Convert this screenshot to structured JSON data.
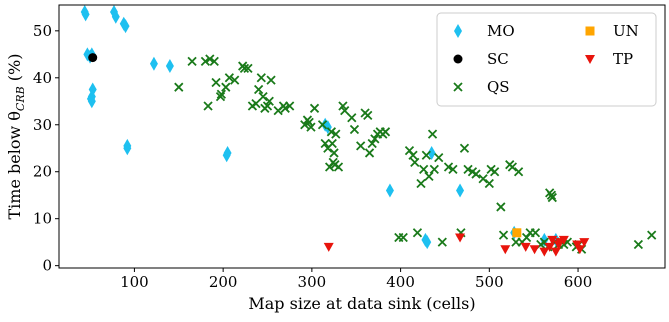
{
  "chart_data": {
    "type": "scatter",
    "xlabel": "Map size at data sink (cells)",
    "ylabel": "Time below θ_CRB (%)",
    "ylabel_parts": {
      "prefix": "Time below θ",
      "subscript": "CRB",
      "suffix": " (%)"
    },
    "xlim": [
      15,
      698
    ],
    "ylim": [
      -0.5,
      55.5
    ],
    "x_ticks": [
      100,
      200,
      300,
      400,
      500,
      600
    ],
    "y_ticks": [
      0,
      10,
      20,
      30,
      40,
      50
    ],
    "grid": false,
    "legend_position": "top-right",
    "legend_columns": 2,
    "series": [
      {
        "name": "MO",
        "marker": "diamond",
        "color": "#1ec0f0",
        "points": [
          [
            44,
            54
          ],
          [
            45,
            53.5
          ],
          [
            47,
            45
          ],
          [
            50,
            44.5
          ],
          [
            52,
            45
          ],
          [
            53,
            37.5
          ],
          [
            52,
            36
          ],
          [
            51,
            35.5
          ],
          [
            52,
            35
          ],
          [
            77,
            54
          ],
          [
            79,
            53
          ],
          [
            88,
            51.5
          ],
          [
            90,
            51
          ],
          [
            92,
            25.5
          ],
          [
            92,
            25
          ],
          [
            122,
            43
          ],
          [
            140,
            42.5
          ],
          [
            205,
            24
          ],
          [
            204,
            23.5
          ],
          [
            315,
            30
          ],
          [
            318,
            29.5
          ],
          [
            388,
            16
          ],
          [
            428,
            5.5
          ],
          [
            430,
            5
          ],
          [
            435,
            24
          ],
          [
            467,
            16
          ],
          [
            528,
            7
          ],
          [
            562,
            5.5
          ],
          [
            575,
            5.5
          ]
        ]
      },
      {
        "name": "SC",
        "marker": "circle",
        "color": "#000000",
        "points": [
          [
            53,
            44.3
          ]
        ]
      },
      {
        "name": "QS",
        "marker": "x",
        "color": "#1a7a1a",
        "points": [
          [
            150,
            38
          ],
          [
            165,
            43.5
          ],
          [
            180,
            43.5
          ],
          [
            185,
            44
          ],
          [
            183,
            34
          ],
          [
            190,
            43.5
          ],
          [
            192,
            39
          ],
          [
            197,
            36
          ],
          [
            198,
            36.5
          ],
          [
            203,
            38
          ],
          [
            207,
            40
          ],
          [
            213,
            39.5
          ],
          [
            222,
            42.5
          ],
          [
            224,
            42
          ],
          [
            228,
            42
          ],
          [
            233,
            34
          ],
          [
            237,
            34.5
          ],
          [
            240,
            37.5
          ],
          [
            243,
            40
          ],
          [
            245,
            36
          ],
          [
            247,
            33.5
          ],
          [
            250,
            34
          ],
          [
            252,
            35
          ],
          [
            254,
            39.5
          ],
          [
            262,
            33
          ],
          [
            268,
            34
          ],
          [
            270,
            33.5
          ],
          [
            275,
            34
          ],
          [
            292,
            30
          ],
          [
            295,
            31
          ],
          [
            297,
            30.5
          ],
          [
            299,
            29.5
          ],
          [
            303,
            33.5
          ],
          [
            312,
            30
          ],
          [
            315,
            26
          ],
          [
            318,
            25
          ],
          [
            322,
            28.5
          ],
          [
            323,
            26
          ],
          [
            325,
            24
          ],
          [
            327,
            28
          ],
          [
            320,
            21
          ],
          [
            324,
            22
          ],
          [
            326,
            21.5
          ],
          [
            330,
            21
          ],
          [
            335,
            34
          ],
          [
            337,
            33
          ],
          [
            345,
            31.5
          ],
          [
            348,
            29
          ],
          [
            355,
            25.5
          ],
          [
            360,
            32.5
          ],
          [
            363,
            32
          ],
          [
            365,
            24
          ],
          [
            368,
            26
          ],
          [
            371,
            27
          ],
          [
            374,
            28
          ],
          [
            377,
            28.5
          ],
          [
            380,
            28
          ],
          [
            383,
            28.5
          ],
          [
            398,
            6
          ],
          [
            403,
            6
          ],
          [
            410,
            24.5
          ],
          [
            414,
            23.5
          ],
          [
            416,
            22
          ],
          [
            419,
            7
          ],
          [
            423,
            17.5
          ],
          [
            426,
            20.5
          ],
          [
            429,
            23.5
          ],
          [
            432,
            19
          ],
          [
            436,
            28
          ],
          [
            438,
            20.5
          ],
          [
            443,
            23
          ],
          [
            447,
            5
          ],
          [
            454,
            21
          ],
          [
            459,
            20.5
          ],
          [
            468,
            7
          ],
          [
            472,
            25
          ],
          [
            476,
            20.5
          ],
          [
            481,
            20
          ],
          [
            485,
            19.5
          ],
          [
            493,
            18.5
          ],
          [
            500,
            17.5
          ],
          [
            502,
            20.5
          ],
          [
            506,
            20
          ],
          [
            513,
            12.5
          ],
          [
            516,
            6.5
          ],
          [
            523,
            21.5
          ],
          [
            526,
            21
          ],
          [
            530,
            5
          ],
          [
            533,
            20
          ],
          [
            537,
            5
          ],
          [
            542,
            6
          ],
          [
            546,
            7
          ],
          [
            552,
            7
          ],
          [
            558,
            4.5
          ],
          [
            562,
            5
          ],
          [
            566,
            4
          ],
          [
            568,
            15.5
          ],
          [
            570,
            15
          ],
          [
            571,
            14.5
          ],
          [
            574,
            5
          ],
          [
            578,
            4.5
          ],
          [
            584,
            4.5
          ],
          [
            588,
            5
          ],
          [
            598,
            4
          ],
          [
            601,
            4.5
          ],
          [
            604,
            3.5
          ],
          [
            668,
            4.5
          ],
          [
            683,
            6.5
          ]
        ]
      },
      {
        "name": "UN",
        "marker": "square",
        "color": "#ffa500",
        "points": [
          [
            531,
            7
          ]
        ]
      },
      {
        "name": "TP",
        "marker": "triangle-down",
        "color": "#e8140c",
        "points": [
          [
            319,
            4
          ],
          [
            467,
            6
          ],
          [
            518,
            3.5
          ],
          [
            541,
            4
          ],
          [
            551,
            3.5
          ],
          [
            562,
            3
          ],
          [
            568,
            4
          ],
          [
            571,
            5.5
          ],
          [
            575,
            3
          ],
          [
            578,
            4.5
          ],
          [
            580,
            5
          ],
          [
            584,
            5.5
          ],
          [
            599,
            4.5
          ],
          [
            602,
            3.5
          ],
          [
            607,
            5
          ]
        ]
      }
    ]
  }
}
